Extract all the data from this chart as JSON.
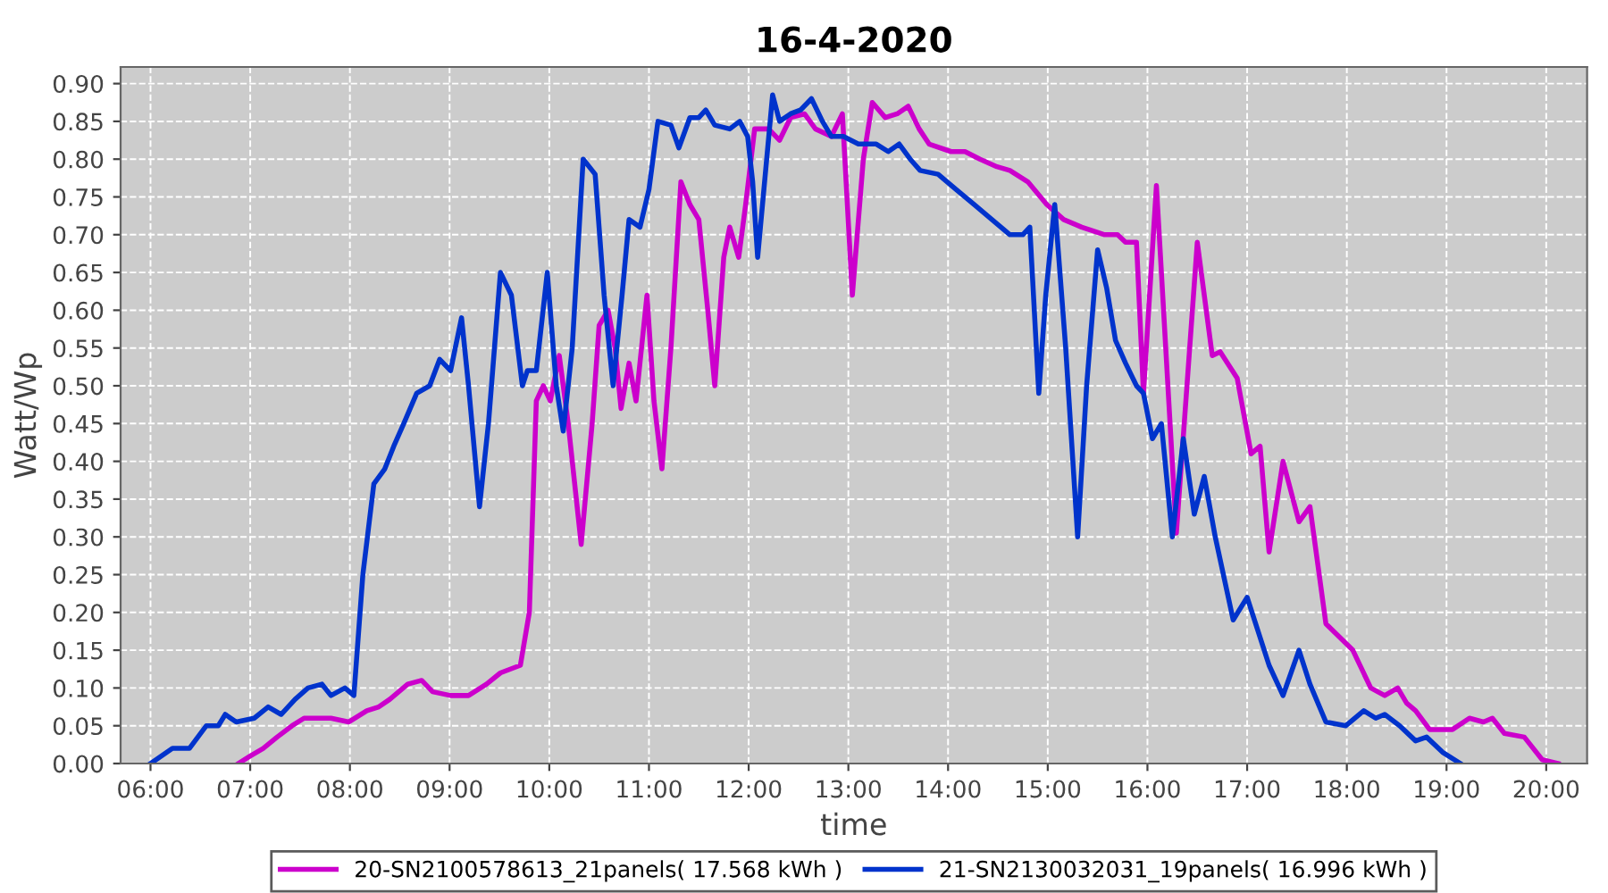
{
  "chart_data": {
    "type": "line",
    "title": "16-4-2020",
    "xlabel": "time",
    "ylabel": "Watt/Wp",
    "xlim": [
      5.7,
      20.41
    ],
    "ylim": [
      0,
      0.922
    ],
    "xticks": [
      {
        "value": 6,
        "label": "06:00"
      },
      {
        "value": 7,
        "label": "07:00"
      },
      {
        "value": 8,
        "label": "08:00"
      },
      {
        "value": 9,
        "label": "09:00"
      },
      {
        "value": 10,
        "label": "10:00"
      },
      {
        "value": 11,
        "label": "11:00"
      },
      {
        "value": 12,
        "label": "12:00"
      },
      {
        "value": 13,
        "label": "13:00"
      },
      {
        "value": 14,
        "label": "14:00"
      },
      {
        "value": 15,
        "label": "15:00"
      },
      {
        "value": 16,
        "label": "16:00"
      },
      {
        "value": 17,
        "label": "17:00"
      },
      {
        "value": 18,
        "label": "18:00"
      },
      {
        "value": 19,
        "label": "19:00"
      },
      {
        "value": 20,
        "label": "20:00"
      }
    ],
    "yticks": [
      {
        "value": 0,
        "label": "0.00"
      },
      {
        "value": 0.05,
        "label": "0.05"
      },
      {
        "value": 0.1,
        "label": "0.10"
      },
      {
        "value": 0.15,
        "label": "0.15"
      },
      {
        "value": 0.2,
        "label": "0.20"
      },
      {
        "value": 0.25,
        "label": "0.25"
      },
      {
        "value": 0.3,
        "label": "0.30"
      },
      {
        "value": 0.35,
        "label": "0.35"
      },
      {
        "value": 0.4,
        "label": "0.40"
      },
      {
        "value": 0.45,
        "label": "0.45"
      },
      {
        "value": 0.5,
        "label": "0.50"
      },
      {
        "value": 0.55,
        "label": "0.55"
      },
      {
        "value": 0.6,
        "label": "0.60"
      },
      {
        "value": 0.65,
        "label": "0.65"
      },
      {
        "value": 0.7,
        "label": "0.70"
      },
      {
        "value": 0.75,
        "label": "0.75"
      },
      {
        "value": 0.8,
        "label": "0.80"
      },
      {
        "value": 0.85,
        "label": "0.85"
      },
      {
        "value": 0.9,
        "label": "0.90"
      }
    ],
    "grid": true,
    "legend": "bottom",
    "marker": "none",
    "line_style": "solid",
    "series": [
      {
        "name": "20-SN2100578613_21panels( 17.568 kWh )",
        "color": "#cc00cc",
        "x": [
          6.88,
          7.0,
          7.13,
          7.27,
          7.42,
          7.54,
          7.68,
          7.81,
          7.99,
          8.17,
          8.29,
          8.4,
          8.58,
          8.72,
          8.83,
          9.01,
          9.19,
          9.37,
          9.51,
          9.71,
          9.8,
          9.87,
          9.94,
          10.01,
          10.1,
          10.19,
          10.32,
          10.43,
          10.5,
          10.59,
          10.66,
          10.72,
          10.8,
          10.87,
          10.98,
          11.05,
          11.13,
          11.22,
          11.32,
          11.41,
          11.5,
          11.59,
          11.66,
          11.75,
          11.81,
          11.9,
          11.97,
          12.06,
          12.2,
          12.31,
          12.42,
          12.56,
          12.67,
          12.83,
          12.94,
          13.04,
          13.15,
          13.24,
          13.37,
          13.49,
          13.6,
          13.71,
          13.81,
          14.03,
          14.17,
          14.32,
          14.49,
          14.62,
          14.8,
          14.99,
          15.16,
          15.34,
          15.57,
          15.7,
          15.78,
          15.89,
          15.96,
          16.09,
          16.29,
          16.5,
          16.65,
          16.73,
          16.9,
          17.04,
          17.13,
          17.22,
          17.36,
          17.52,
          17.63,
          17.79,
          18.06,
          18.24,
          18.38,
          18.51,
          18.6,
          18.69,
          18.83,
          19.06,
          19.23,
          19.37,
          19.46,
          19.58,
          19.78,
          19.96,
          20.12
        ],
        "values": [
          0.0,
          0.01,
          0.02,
          0.035,
          0.05,
          0.06,
          0.06,
          0.06,
          0.055,
          0.07,
          0.075,
          0.085,
          0.105,
          0.11,
          0.095,
          0.09,
          0.09,
          0.105,
          0.12,
          0.13,
          0.2,
          0.48,
          0.5,
          0.48,
          0.54,
          0.45,
          0.29,
          0.45,
          0.58,
          0.6,
          0.55,
          0.47,
          0.53,
          0.48,
          0.62,
          0.48,
          0.39,
          0.55,
          0.77,
          0.74,
          0.72,
          0.6,
          0.5,
          0.67,
          0.71,
          0.67,
          0.74,
          0.84,
          0.84,
          0.825,
          0.855,
          0.86,
          0.84,
          0.83,
          0.86,
          0.62,
          0.8,
          0.875,
          0.855,
          0.86,
          0.87,
          0.84,
          0.82,
          0.81,
          0.81,
          0.8,
          0.79,
          0.785,
          0.77,
          0.74,
          0.72,
          0.71,
          0.7,
          0.7,
          0.69,
          0.69,
          0.49,
          0.765,
          0.305,
          0.69,
          0.54,
          0.545,
          0.51,
          0.41,
          0.42,
          0.28,
          0.4,
          0.32,
          0.34,
          0.185,
          0.15,
          0.1,
          0.09,
          0.1,
          0.08,
          0.07,
          0.045,
          0.045,
          0.06,
          0.055,
          0.06,
          0.04,
          0.035,
          0.005,
          0.0
        ]
      },
      {
        "name": "21-SN2130032031_19panels( 16.996 kWh )",
        "color": "#0033cc",
        "x": [
          6.0,
          6.22,
          6.39,
          6.56,
          6.68,
          6.75,
          6.86,
          7.04,
          7.18,
          7.31,
          7.45,
          7.58,
          7.72,
          7.81,
          7.95,
          8.04,
          8.13,
          8.24,
          8.35,
          8.44,
          8.54,
          8.67,
          8.8,
          8.9,
          9.01,
          9.12,
          9.19,
          9.3,
          9.39,
          9.51,
          9.62,
          9.73,
          9.78,
          9.87,
          9.98,
          10.07,
          10.14,
          10.23,
          10.34,
          10.46,
          10.55,
          10.64,
          10.73,
          10.8,
          10.91,
          11.0,
          11.09,
          11.22,
          11.3,
          11.41,
          11.5,
          11.57,
          11.66,
          11.81,
          11.91,
          11.99,
          12.04,
          12.09,
          12.24,
          12.31,
          12.42,
          12.52,
          12.63,
          12.74,
          12.83,
          12.95,
          13.1,
          13.28,
          13.4,
          13.51,
          13.62,
          13.72,
          13.9,
          14.08,
          14.26,
          14.44,
          14.62,
          14.75,
          14.82,
          14.91,
          14.98,
          15.07,
          15.18,
          15.3,
          15.39,
          15.5,
          15.59,
          15.68,
          15.78,
          15.89,
          15.96,
          16.05,
          16.14,
          16.25,
          16.36,
          16.47,
          16.57,
          16.68,
          16.86,
          17.0,
          17.22,
          17.36,
          17.52,
          17.63,
          17.79,
          17.99,
          18.17,
          18.29,
          18.38,
          18.53,
          18.69,
          18.8,
          18.96,
          19.14
        ],
        "values": [
          0.0,
          0.02,
          0.02,
          0.05,
          0.05,
          0.065,
          0.055,
          0.06,
          0.075,
          0.065,
          0.085,
          0.1,
          0.105,
          0.09,
          0.1,
          0.09,
          0.25,
          0.37,
          0.39,
          0.42,
          0.45,
          0.49,
          0.5,
          0.535,
          0.52,
          0.59,
          0.5,
          0.34,
          0.45,
          0.65,
          0.62,
          0.5,
          0.52,
          0.52,
          0.65,
          0.5,
          0.44,
          0.55,
          0.8,
          0.78,
          0.62,
          0.5,
          0.62,
          0.72,
          0.71,
          0.76,
          0.85,
          0.845,
          0.815,
          0.855,
          0.855,
          0.865,
          0.845,
          0.84,
          0.85,
          0.83,
          0.77,
          0.67,
          0.885,
          0.85,
          0.86,
          0.865,
          0.88,
          0.85,
          0.83,
          0.83,
          0.82,
          0.82,
          0.81,
          0.82,
          0.8,
          0.785,
          0.78,
          0.76,
          0.74,
          0.72,
          0.7,
          0.7,
          0.71,
          0.49,
          0.62,
          0.74,
          0.55,
          0.3,
          0.5,
          0.68,
          0.63,
          0.56,
          0.53,
          0.5,
          0.49,
          0.43,
          0.45,
          0.3,
          0.43,
          0.33,
          0.38,
          0.3,
          0.19,
          0.22,
          0.13,
          0.09,
          0.15,
          0.105,
          0.055,
          0.05,
          0.07,
          0.06,
          0.065,
          0.05,
          0.03,
          0.035,
          0.015,
          0.0
        ]
      }
    ]
  }
}
